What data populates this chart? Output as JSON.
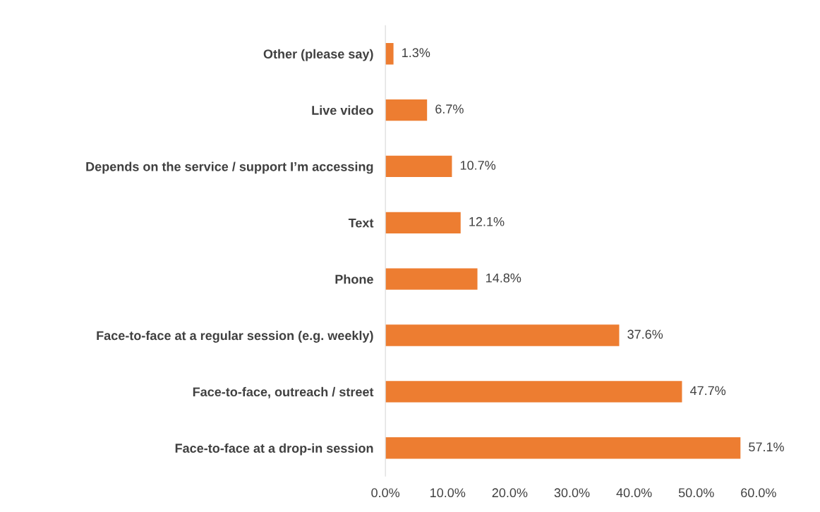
{
  "chart_data": {
    "type": "bar",
    "orientation": "horizontal",
    "categories": [
      "Other (please say)",
      "Live video",
      "Depends on the service / support I’m accessing",
      "Text",
      "Phone",
      "Face-to-face at a regular session (e.g. weekly)",
      "Face-to-face, outreach / street",
      "Face-to-face at a drop-in session"
    ],
    "values": [
      1.3,
      6.7,
      10.7,
      12.1,
      14.8,
      37.6,
      47.7,
      57.1
    ],
    "value_labels": [
      "1.3%",
      "6.7%",
      "10.7%",
      "12.1%",
      "14.8%",
      "37.6%",
      "47.7%",
      "57.1%"
    ],
    "color": "#ed7d31",
    "xlim": [
      0,
      60
    ],
    "xticks": [
      {
        "value": 0,
        "label": "0.0%"
      },
      {
        "value": 10,
        "label": "10.0%"
      },
      {
        "value": 20,
        "label": "20.0%"
      },
      {
        "value": 30,
        "label": "30.0%"
      },
      {
        "value": 40,
        "label": "40.0%"
      },
      {
        "value": 50,
        "label": "50.0%"
      },
      {
        "value": 60,
        "label": "60.0%"
      }
    ],
    "grid": false
  }
}
